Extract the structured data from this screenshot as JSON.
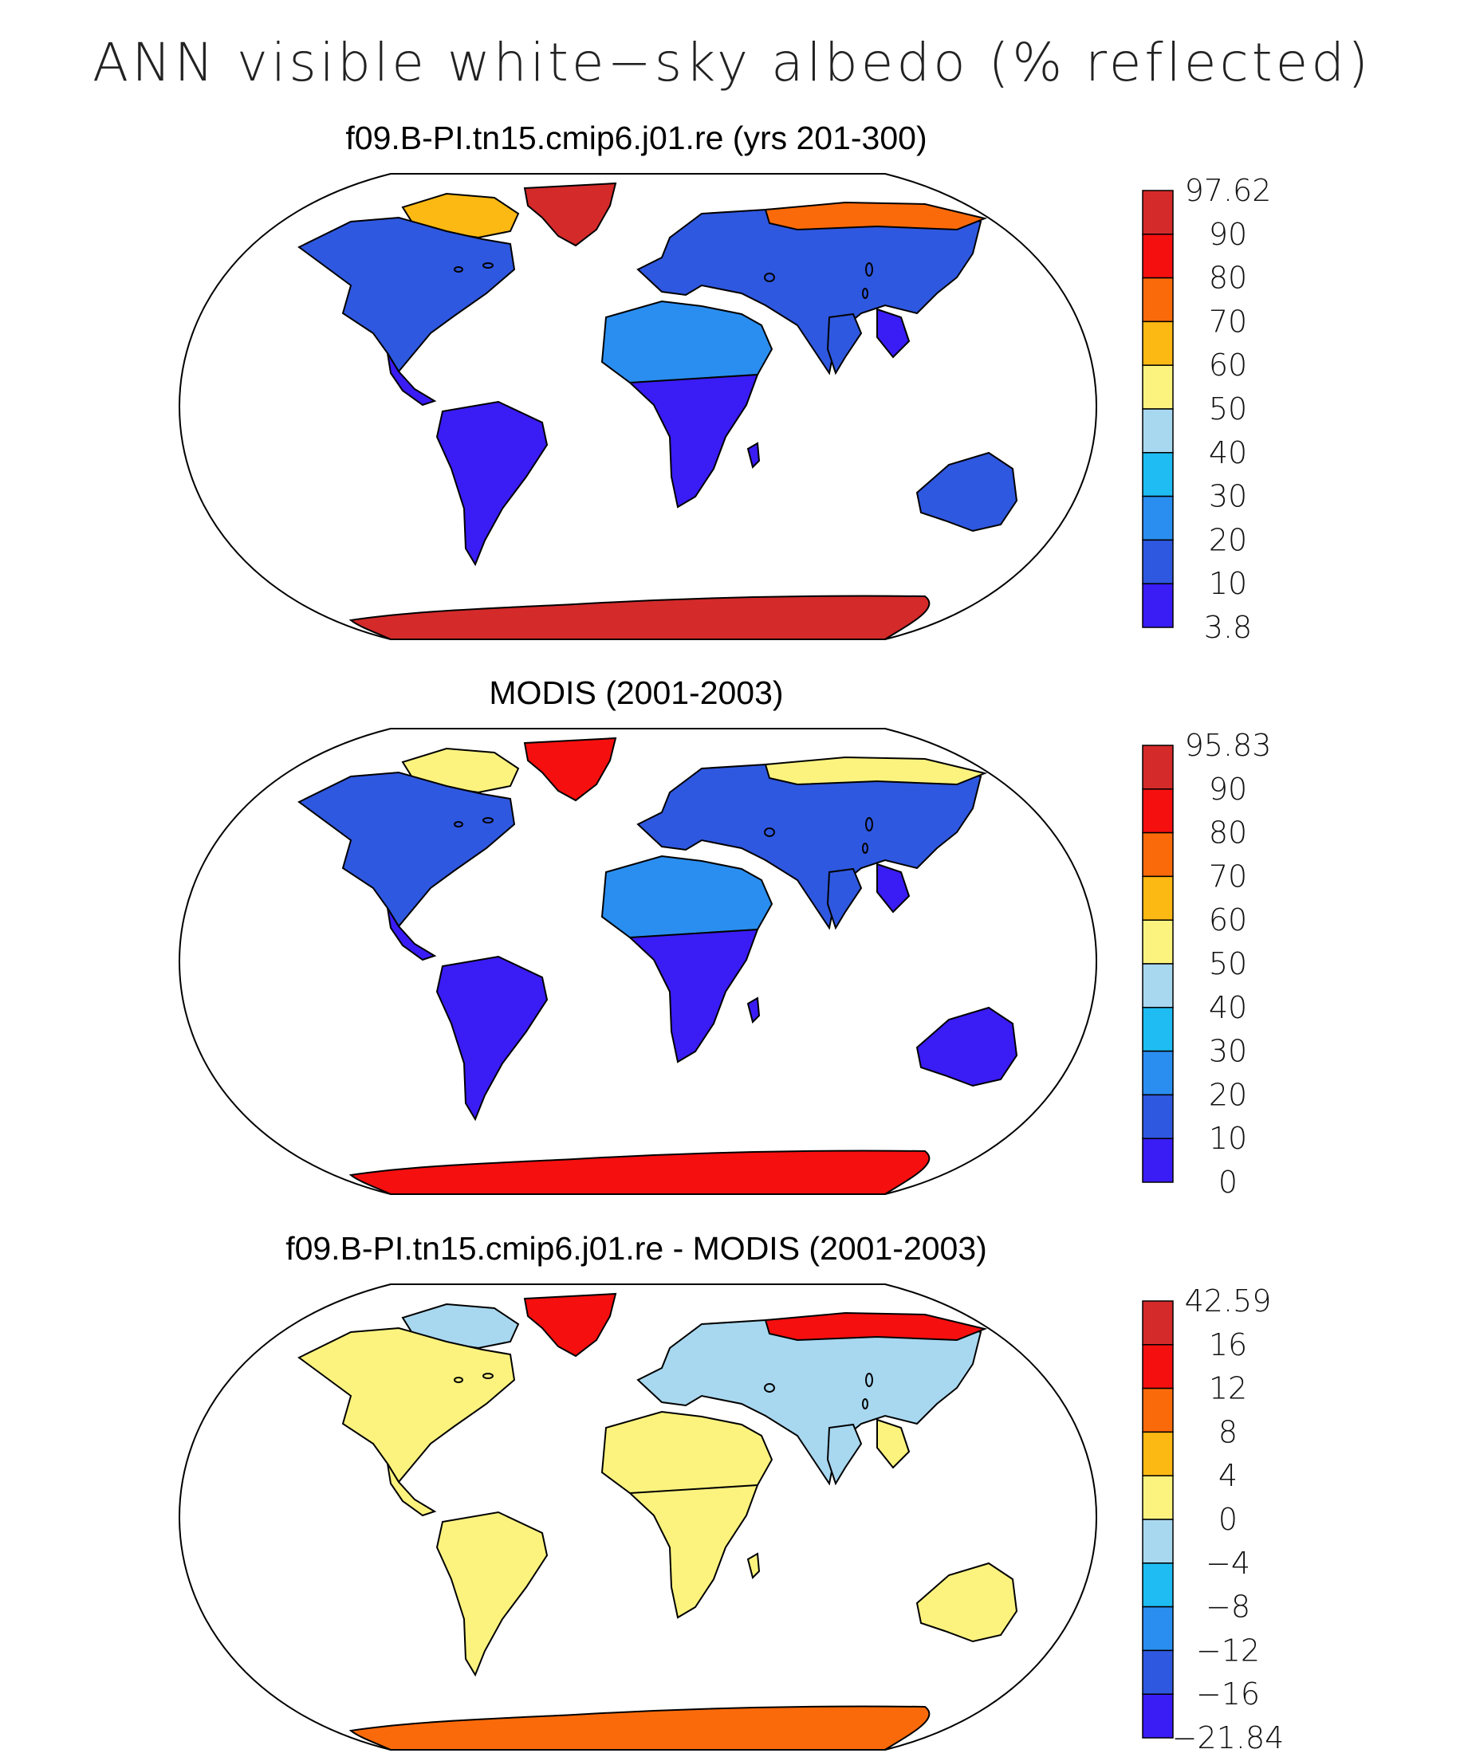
{
  "title": "ANN visible white−sky albedo (% reflected)",
  "panels": [
    {
      "id": "model",
      "title": "f09.B-PI.tn15.cmip6.j01.re (yrs 201-300)",
      "colorbar": {
        "labels": [
          "97.62",
          "90",
          "80",
          "70",
          "60",
          "50",
          "40",
          "30",
          "20",
          "10",
          "3.8"
        ],
        "colors": [
          "#d42a2a",
          "#f50f0f",
          "#fb6a0a",
          "#fdb913",
          "#fcf37e",
          "#a8d8f0",
          "#1ebcf2",
          "#2a8ef0",
          "#2f58e0",
          "#3a1cf5"
        ]
      },
      "regions": [
        {
          "id": "greenland",
          "color": "#d42a2a"
        },
        {
          "id": "antarctica",
          "color": "#d42a2a"
        },
        {
          "id": "arctic-canada",
          "color": "#fdb913"
        },
        {
          "id": "north-america",
          "color": "#2f58e0"
        },
        {
          "id": "south-america",
          "color": "#3a1cf5"
        },
        {
          "id": "sahara",
          "color": "#2a8ef0"
        },
        {
          "id": "southern-africa",
          "color": "#3a1cf5"
        },
        {
          "id": "eurasia",
          "color": "#2f58e0"
        },
        {
          "id": "siberia-north",
          "color": "#fb6a0a"
        },
        {
          "id": "australia",
          "color": "#2f58e0"
        }
      ]
    },
    {
      "id": "obs",
      "title": "MODIS (2001-2003)",
      "colorbar": {
        "labels": [
          "95.83",
          "90",
          "80",
          "70",
          "60",
          "50",
          "40",
          "30",
          "20",
          "10",
          "0"
        ],
        "colors": [
          "#d42a2a",
          "#f50f0f",
          "#fb6a0a",
          "#fdb913",
          "#fcf37e",
          "#a8d8f0",
          "#1ebcf2",
          "#2a8ef0",
          "#2f58e0",
          "#3a1cf5"
        ]
      },
      "regions": [
        {
          "id": "greenland",
          "color": "#f50f0f"
        },
        {
          "id": "antarctica",
          "color": "#f50f0f"
        },
        {
          "id": "arctic-canada",
          "color": "#fcf37e"
        },
        {
          "id": "north-america",
          "color": "#2f58e0"
        },
        {
          "id": "south-america",
          "color": "#3a1cf5"
        },
        {
          "id": "sahara",
          "color": "#2a8ef0"
        },
        {
          "id": "southern-africa",
          "color": "#3a1cf5"
        },
        {
          "id": "eurasia",
          "color": "#2f58e0"
        },
        {
          "id": "siberia-north",
          "color": "#fcf37e"
        },
        {
          "id": "australia",
          "color": "#3a1cf5"
        }
      ]
    },
    {
      "id": "diff",
      "title": "f09.B-PI.tn15.cmip6.j01.re - MODIS (2001-2003)",
      "colorbar": {
        "labels": [
          "42.59",
          "16",
          "12",
          "8",
          "4",
          "0",
          "−4",
          "−8",
          "−12",
          "−16",
          "−21.84"
        ],
        "colors": [
          "#d42a2a",
          "#f50f0f",
          "#fb6a0a",
          "#fdb913",
          "#fcf37e",
          "#a8d8f0",
          "#1ebcf2",
          "#2a8ef0",
          "#2f58e0",
          "#3a1cf5"
        ]
      },
      "regions": [
        {
          "id": "greenland",
          "color": "#f50f0f"
        },
        {
          "id": "antarctica",
          "color": "#fb6a0a"
        },
        {
          "id": "arctic-canada",
          "color": "#a8d8f0"
        },
        {
          "id": "north-america",
          "color": "#fcf37e"
        },
        {
          "id": "south-america",
          "color": "#fcf37e"
        },
        {
          "id": "sahara",
          "color": "#fcf37e"
        },
        {
          "id": "southern-africa",
          "color": "#fcf37e"
        },
        {
          "id": "eurasia",
          "color": "#a8d8f0"
        },
        {
          "id": "siberia-north",
          "color": "#f50f0f"
        },
        {
          "id": "australia",
          "color": "#fcf37e"
        }
      ]
    }
  ]
}
